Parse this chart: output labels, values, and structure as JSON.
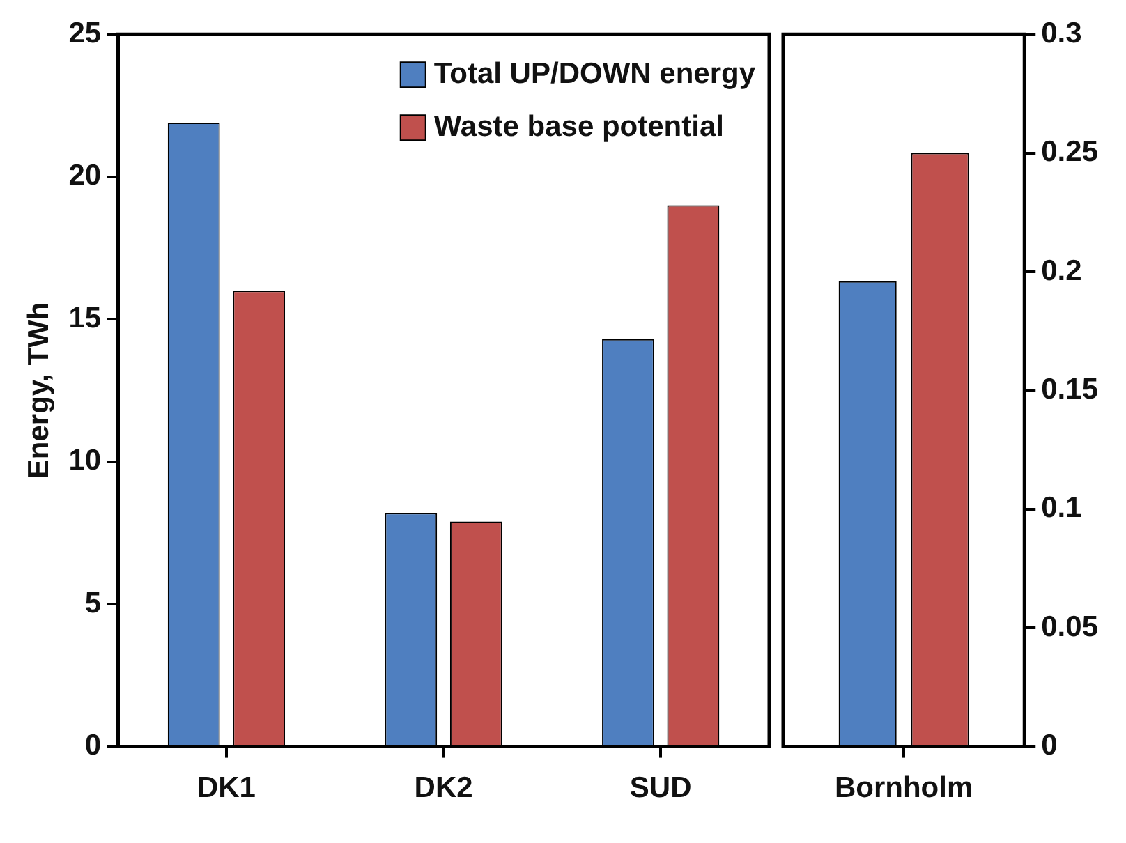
{
  "chart_data": [
    {
      "type": "bar",
      "ylabel": "Energy, TWh",
      "categories": [
        "DK1",
        "DK2",
        "SUD"
      ],
      "ylim": [
        0,
        25
      ],
      "yticks": [
        0,
        5,
        10,
        15,
        20,
        25
      ],
      "legend": "top right",
      "grid": false,
      "series": [
        {
          "name": "Total UP/DOWN energy",
          "color": "#4f7fc0",
          "values": [
            21.9,
            8.2,
            14.3
          ]
        },
        {
          "name": "Waste base potential",
          "color": "#c0504d",
          "values": [
            16.0,
            7.9,
            19.0
          ]
        }
      ]
    },
    {
      "type": "bar",
      "categories": [
        "Bornholm"
      ],
      "y2lim": [
        0,
        0.3
      ],
      "y2ticks": [
        0,
        0.05,
        0.1,
        0.15,
        0.2,
        0.25,
        0.3
      ],
      "grid": false,
      "series": [
        {
          "color": "#4f7fc0",
          "values": [
            0.196
          ],
          "axis": "y2"
        },
        {
          "color": "#c0504d",
          "values": [
            0.25
          ],
          "axis": "y2"
        }
      ]
    }
  ]
}
